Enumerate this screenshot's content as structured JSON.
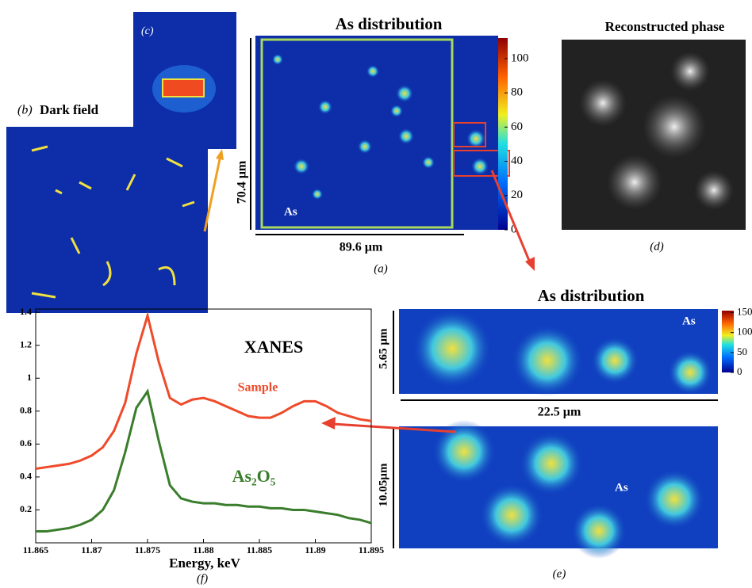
{
  "panel_a": {
    "title": "As distribution",
    "element": "As",
    "height_label": "70.4 µm",
    "width_label": "89.6 µm",
    "label": "(a)",
    "colorbar_ticks": [
      0,
      20,
      40,
      60,
      80,
      100
    ],
    "colorbar_lim": [
      0,
      112
    ]
  },
  "panel_b": {
    "label": "(b)",
    "title": "Dark field"
  },
  "panel_c": {
    "label": "(c)"
  },
  "panel_d": {
    "title": "Reconstructed phase",
    "label": "(d)"
  },
  "panel_e": {
    "title": "As distribution",
    "element_top": "As",
    "element_bottom": "As",
    "height_top": "5.65 µm",
    "width_top": "22.5 µm",
    "height_bottom": "10.05µm",
    "label": "(e)",
    "colorbar_ticks": [
      0,
      50,
      100,
      150
    ],
    "colorbar_lim": [
      0,
      155
    ]
  },
  "chart_data": {
    "type": "line",
    "title": "XANES",
    "x_label": "Energy, keV",
    "panel_label": "(f)",
    "x": [
      11.865,
      11.866,
      11.867,
      11.868,
      11.869,
      11.87,
      11.871,
      11.872,
      11.873,
      11.874,
      11.875,
      11.876,
      11.877,
      11.878,
      11.879,
      11.88,
      11.881,
      11.882,
      11.883,
      11.884,
      11.885,
      11.886,
      11.887,
      11.888,
      11.889,
      11.89,
      11.891,
      11.892,
      11.893,
      11.894,
      11.895
    ],
    "series": [
      {
        "name": "Sample",
        "color": "#ef4a2a",
        "values": [
          0.45,
          0.46,
          0.47,
          0.48,
          0.5,
          0.53,
          0.58,
          0.68,
          0.85,
          1.15,
          1.38,
          1.1,
          0.88,
          0.84,
          0.87,
          0.88,
          0.86,
          0.83,
          0.8,
          0.77,
          0.76,
          0.76,
          0.79,
          0.83,
          0.86,
          0.86,
          0.83,
          0.79,
          0.77,
          0.75,
          0.74
        ]
      },
      {
        "name": "As₂O₅",
        "color": "#3a7d2c",
        "values": [
          0.07,
          0.07,
          0.08,
          0.09,
          0.11,
          0.14,
          0.2,
          0.32,
          0.55,
          0.82,
          0.92,
          0.62,
          0.35,
          0.27,
          0.25,
          0.24,
          0.24,
          0.23,
          0.23,
          0.22,
          0.22,
          0.21,
          0.21,
          0.2,
          0.2,
          0.19,
          0.18,
          0.17,
          0.15,
          0.14,
          0.12
        ]
      }
    ],
    "xlim": [
      11.865,
      11.895
    ],
    "xticks": [
      11.865,
      11.87,
      11.875,
      11.88,
      11.885,
      11.89,
      11.895
    ],
    "ylim": [
      0,
      1.42
    ],
    "yticks": [
      0.2,
      0.4,
      0.6,
      0.8,
      1,
      1.2,
      1.4
    ]
  }
}
